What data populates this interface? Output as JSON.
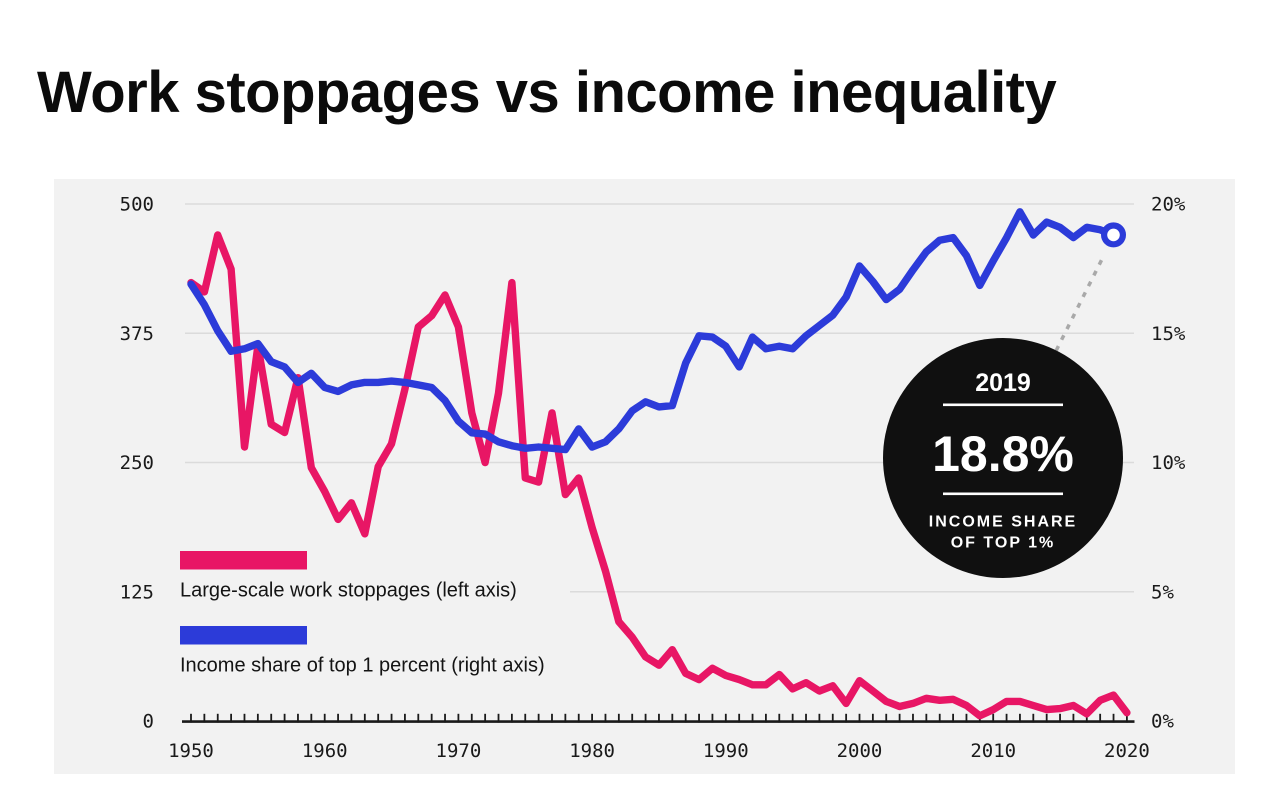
{
  "title": "Work stoppages vs income inequality",
  "colors": {
    "pink": "#E81665",
    "blue": "#2C3BD9",
    "panel_bg": "#F2F2F2",
    "grid": "#DBDBDB",
    "axis": "#1A1A1A",
    "callout_bg": "#101010",
    "connector": "#A9A9A9",
    "white": "#FFFFFF"
  },
  "chart_data": {
    "type": "line",
    "title": "Work stoppages vs income inequality",
    "x_ticks": [
      1950,
      1960,
      1970,
      1980,
      1990,
      2000,
      2010,
      2020
    ],
    "minor_tick_interval": 1,
    "x_range": [
      1950,
      2020
    ],
    "left_axis": {
      "ticks": [
        "0",
        "125",
        "250",
        "375",
        "500"
      ],
      "tick_values": [
        0,
        125,
        250,
        375,
        500
      ],
      "range": [
        0,
        500
      ]
    },
    "right_axis": {
      "ticks": [
        "0%",
        "5%",
        "10%",
        "15%",
        "20%"
      ],
      "tick_values": [
        0,
        5,
        10,
        15,
        20
      ],
      "range": [
        0,
        20
      ]
    },
    "grid": true,
    "legend_position": "left-middle",
    "series": [
      {
        "name": "Large-scale work stoppages (left axis)",
        "axis": "left",
        "color_key": "pink",
        "start_year": 1950,
        "end_year": 2020,
        "values": [
          424,
          415,
          470,
          437,
          265,
          363,
          287,
          279,
          332,
          245,
          222,
          195,
          211,
          181,
          246,
          268,
          321,
          381,
          392,
          412,
          381,
          298,
          250,
          317,
          424,
          235,
          231,
          298,
          219,
          235,
          187,
          145,
          96,
          81,
          62,
          54,
          69,
          46,
          40,
          51,
          44,
          40,
          35,
          35,
          45,
          31,
          37,
          29,
          34,
          17,
          39,
          29,
          19,
          14,
          17,
          22,
          20,
          21,
          15,
          5,
          11,
          19,
          19,
          15,
          11,
          12,
          15,
          7,
          20,
          25,
          8
        ]
      },
      {
        "name": "Income share of top 1 percent (right axis)",
        "axis": "right",
        "color_key": "blue",
        "start_year": 1950,
        "end_year": 2019,
        "end_marker": true,
        "values": [
          16.9,
          16.1,
          15.1,
          14.3,
          14.4,
          14.6,
          13.9,
          13.7,
          13.1,
          13.45,
          12.9,
          12.75,
          13.0,
          13.1,
          13.1,
          13.15,
          13.1,
          13.0,
          12.9,
          12.4,
          11.6,
          11.15,
          11.1,
          10.8,
          10.65,
          10.55,
          10.6,
          10.55,
          10.5,
          11.3,
          10.6,
          10.8,
          11.3,
          12.0,
          12.35,
          12.15,
          12.2,
          13.85,
          14.9,
          14.85,
          14.5,
          13.7,
          14.85,
          14.4,
          14.5,
          14.4,
          14.9,
          15.3,
          15.7,
          16.4,
          17.6,
          17.0,
          16.3,
          16.7,
          17.45,
          18.15,
          18.6,
          18.7,
          18.0,
          16.85,
          17.8,
          18.7,
          19.7,
          18.8,
          19.3,
          19.1,
          18.7,
          19.1,
          19.0,
          18.8
        ]
      }
    ],
    "annotation": {
      "year": "2019",
      "value": "18.8%",
      "label_line1": "INCOME SHARE",
      "label_line2": "OF TOP 1%",
      "points_to_year": 2019
    }
  }
}
